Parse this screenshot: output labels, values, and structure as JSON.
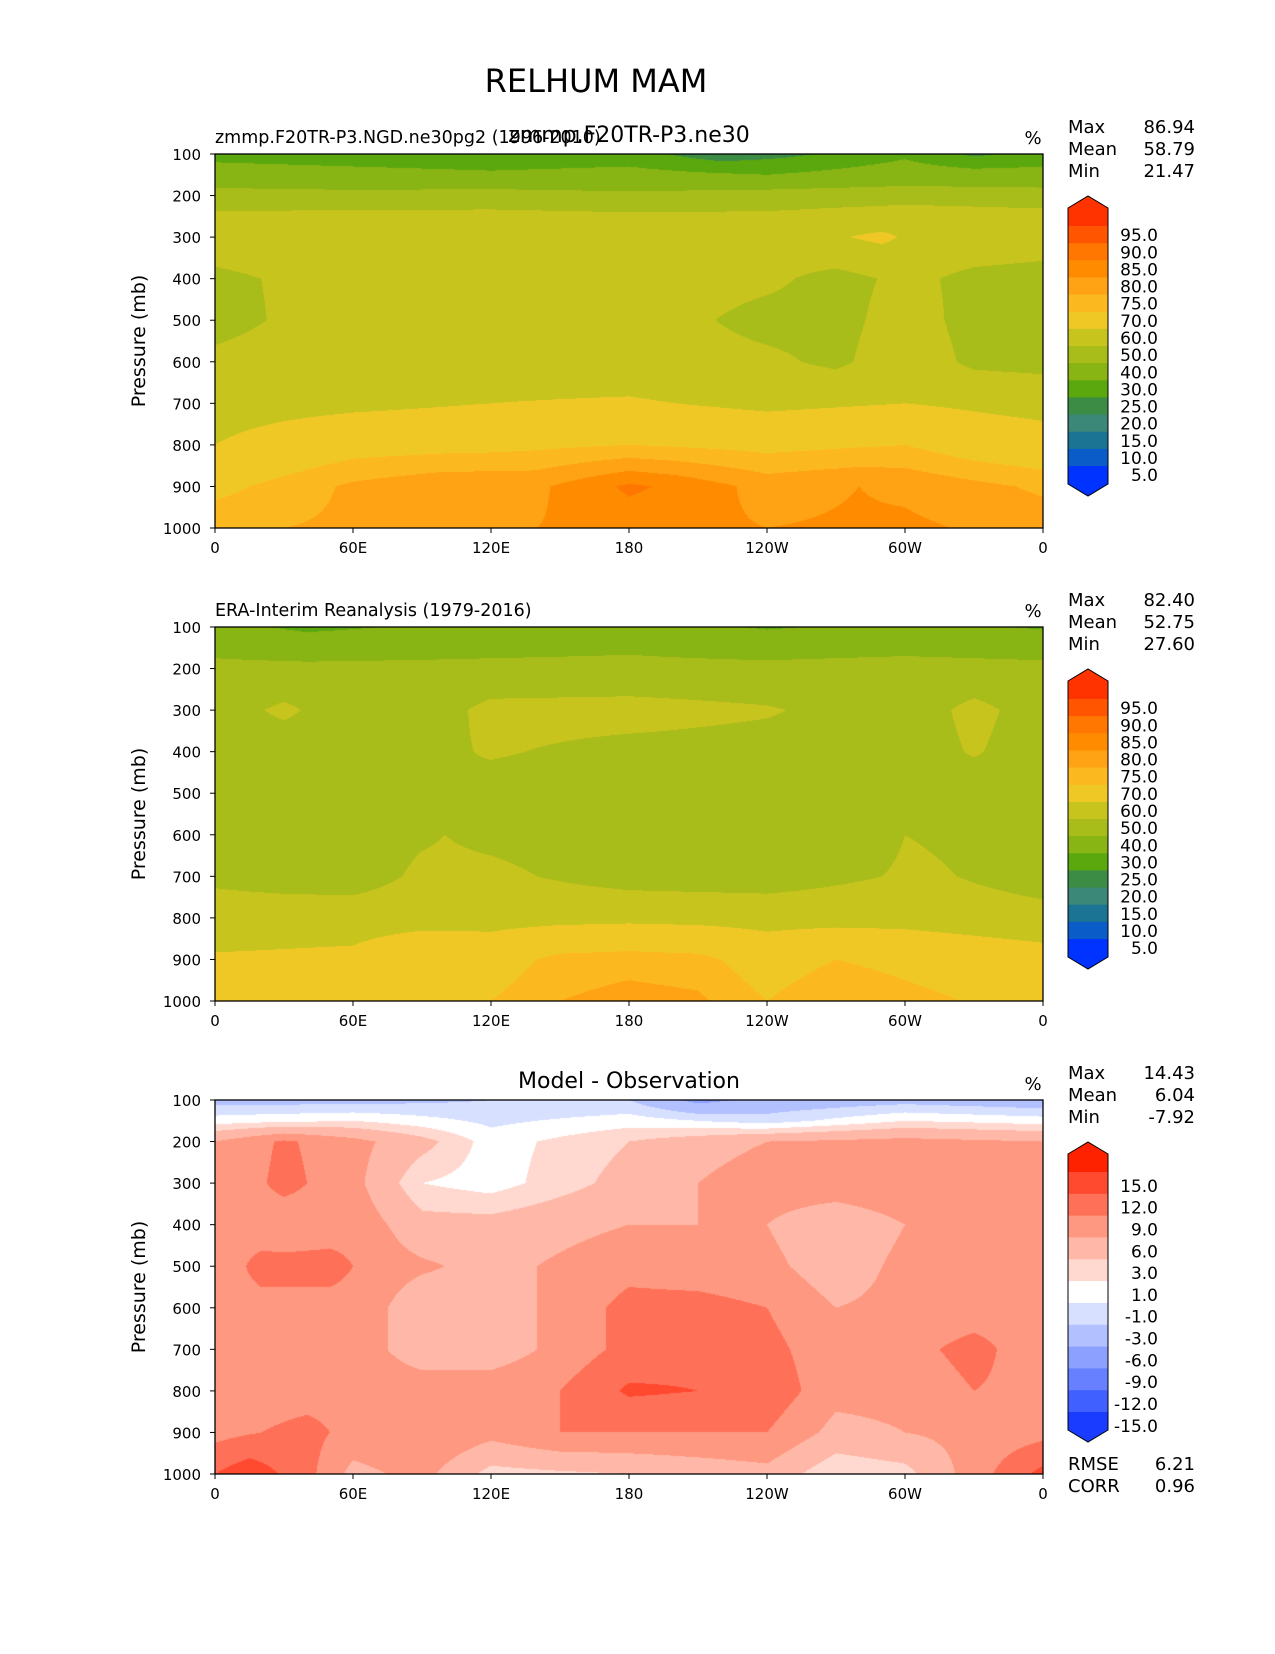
{
  "figure": {
    "title": "RELHUM MAM"
  },
  "chart_data": [
    {
      "type": "heatmap",
      "panel": "model",
      "left_title": "zmmp.F20TR-P3.NGD.ne30pg2 (1996-2010)",
      "center_title": "zmmp.F20TR-P3.ne30",
      "units": "%",
      "ylabel": "Pressure (mb)",
      "x_ticks": [
        "0",
        "60E",
        "120E",
        "180",
        "120W",
        "60W",
        "0"
      ],
      "y_ticks": [
        "100",
        "200",
        "300",
        "400",
        "500",
        "600",
        "700",
        "800",
        "900",
        "1000"
      ],
      "xlim": [
        0,
        360
      ],
      "ylim": [
        100,
        1000
      ],
      "stats": {
        "labels": [
          "Max",
          "Mean",
          "Min"
        ],
        "values": [
          "86.94",
          "58.79",
          "21.47"
        ]
      },
      "colorbar": {
        "levels": [
          "95.0",
          "90.0",
          "85.0",
          "80.0",
          "75.0",
          "70.0",
          "60.0",
          "50.0",
          "40.0",
          "30.0",
          "25.0",
          "20.0",
          "15.0",
          "10.0",
          "5.0"
        ],
        "colors": [
          "#ff3300",
          "#ff5500",
          "#ff7700",
          "#ff8c00",
          "#ffa214",
          "#fcb81f",
          "#f0c826",
          "#c8c41e",
          "#a8bc1a",
          "#88b414",
          "#5aa80e",
          "#3c8c46",
          "#3c8878",
          "#1c7494",
          "#0a5cc8",
          "#0033ff"
        ]
      },
      "bands": [
        {
          "p": 100,
          "lon": [
            0,
            60,
            120,
            180,
            220,
            250,
            300,
            330,
            360
          ],
          "v": [
            28,
            27,
            26,
            27,
            22,
            24,
            29,
            24,
            27
          ]
        },
        {
          "p": 150,
          "lon": [
            0,
            60,
            120,
            180,
            240,
            300,
            360
          ],
          "v": [
            33,
            32,
            31,
            32,
            30,
            33,
            32
          ]
        },
        {
          "p": 200,
          "lon": [
            0,
            60,
            120,
            180,
            240,
            300,
            360
          ],
          "v": [
            44,
            43,
            44,
            42,
            44,
            46,
            45
          ]
        },
        {
          "p": 250,
          "lon": [
            0,
            60,
            120,
            180,
            240,
            300,
            360
          ],
          "v": [
            52,
            53,
            53,
            52,
            52,
            55,
            53
          ]
        },
        {
          "p": 300,
          "lon": [
            0,
            60,
            120,
            180,
            240,
            290,
            310,
            360
          ],
          "v": [
            55,
            56,
            56,
            55,
            55,
            62,
            56,
            54
          ]
        },
        {
          "p": 400,
          "lon": [
            0,
            60,
            120,
            180,
            240,
            270,
            300,
            330,
            360
          ],
          "v": [
            48,
            54,
            55,
            55,
            52,
            47,
            52,
            48,
            47
          ]
        },
        {
          "p": 500,
          "lon": [
            0,
            60,
            120,
            180,
            240,
            270,
            300,
            330,
            360
          ],
          "v": [
            47,
            55,
            56,
            55,
            47,
            47,
            54,
            47,
            46
          ]
        },
        {
          "p": 600,
          "lon": [
            0,
            60,
            120,
            180,
            240,
            270,
            300,
            330,
            360
          ],
          "v": [
            52,
            56,
            56,
            55,
            52,
            48,
            56,
            48,
            47
          ]
        },
        {
          "p": 700,
          "lon": [
            0,
            60,
            120,
            180,
            240,
            300,
            360
          ],
          "v": [
            56,
            58,
            60,
            61,
            58,
            60,
            57
          ]
        },
        {
          "p": 800,
          "lon": [
            0,
            30,
            60,
            120,
            180,
            240,
            300,
            330,
            360
          ],
          "v": [
            60,
            64,
            67,
            68,
            70,
            68,
            70,
            66,
            64
          ]
        },
        {
          "p": 900,
          "lon": [
            0,
            30,
            60,
            100,
            140,
            180,
            200,
            240,
            280,
            300,
            360
          ],
          "v": [
            68,
            72,
            76,
            79,
            79,
            86,
            84,
            78,
            80,
            79,
            74
          ]
        },
        {
          "p": 1000,
          "lon": [
            0,
            60,
            100,
            140,
            180,
            240,
            300,
            360
          ],
          "v": [
            74,
            76,
            79,
            80,
            82,
            80,
            81,
            78
          ]
        }
      ]
    },
    {
      "type": "heatmap",
      "panel": "observation",
      "left_title": "ERA-Interim Reanalysis (1979-2016)",
      "center_title": "",
      "units": "%",
      "ylabel": "Pressure (mb)",
      "x_ticks": [
        "0",
        "60E",
        "120E",
        "180",
        "120W",
        "60W",
        "0"
      ],
      "y_ticks": [
        "100",
        "200",
        "300",
        "400",
        "500",
        "600",
        "700",
        "800",
        "900",
        "1000"
      ],
      "xlim": [
        0,
        360
      ],
      "ylim": [
        100,
        1000
      ],
      "stats": {
        "labels": [
          "Max",
          "Mean",
          "Min"
        ],
        "values": [
          "82.40",
          "52.75",
          "27.60"
        ]
      },
      "colorbar": {
        "levels": [
          "95.0",
          "90.0",
          "85.0",
          "80.0",
          "75.0",
          "70.0",
          "60.0",
          "50.0",
          "40.0",
          "30.0",
          "25.0",
          "20.0",
          "15.0",
          "10.0",
          "5.0"
        ],
        "colors": [
          "#ff3300",
          "#ff5500",
          "#ff7700",
          "#ff8c00",
          "#ffa214",
          "#fcb81f",
          "#f0c826",
          "#c8c41e",
          "#a8bc1a",
          "#88b414",
          "#5aa80e",
          "#3c8c46",
          "#3c8878",
          "#1c7494",
          "#0a5cc8",
          "#0033ff"
        ]
      },
      "bands": [
        {
          "p": 100,
          "lon": [
            0,
            40,
            120,
            180,
            240,
            300,
            360
          ],
          "v": [
            33,
            28,
            33,
            35,
            29,
            33,
            29
          ]
        },
        {
          "p": 150,
          "lon": [
            0,
            40,
            120,
            180,
            240,
            300,
            360
          ],
          "v": [
            38,
            36,
            38,
            39,
            37,
            38,
            37
          ]
        },
        {
          "p": 200,
          "lon": [
            0,
            60,
            120,
            180,
            240,
            300,
            360
          ],
          "v": [
            42,
            42,
            42,
            42,
            42,
            43,
            42
          ]
        },
        {
          "p": 300,
          "lon": [
            0,
            30,
            60,
            90,
            120,
            180,
            240,
            300,
            330,
            360
          ],
          "v": [
            45,
            52,
            44,
            44,
            53,
            54,
            51,
            44,
            53,
            45
          ]
        },
        {
          "p": 400,
          "lon": [
            0,
            60,
            90,
            120,
            180,
            240,
            300,
            330,
            360
          ],
          "v": [
            44,
            44,
            47,
            51,
            47,
            46,
            44,
            51,
            44
          ]
        },
        {
          "p": 500,
          "lon": [
            0,
            60,
            100,
            120,
            180,
            240,
            300,
            360
          ],
          "v": [
            44,
            43,
            50,
            46,
            45,
            44,
            44,
            44
          ]
        },
        {
          "p": 600,
          "lon": [
            0,
            60,
            100,
            120,
            180,
            240,
            290,
            300,
            360
          ],
          "v": [
            44,
            45,
            50,
            48,
            45,
            44,
            44,
            50,
            44
          ]
        },
        {
          "p": 700,
          "lon": [
            0,
            30,
            60,
            90,
            120,
            180,
            240,
            290,
            300,
            360
          ],
          "v": [
            48,
            46,
            45,
            52,
            52,
            46,
            45,
            50,
            53,
            45
          ]
        },
        {
          "p": 800,
          "lon": [
            0,
            60,
            120,
            180,
            240,
            300,
            360
          ],
          "v": [
            55,
            56,
            57,
            58,
            57,
            57,
            54
          ]
        },
        {
          "p": 900,
          "lon": [
            0,
            60,
            90,
            120,
            150,
            180,
            210,
            240,
            270,
            300,
            360
          ],
          "v": [
            61,
            62,
            68,
            66,
            72,
            73,
            72,
            66,
            70,
            68,
            64
          ]
        },
        {
          "p": 1000,
          "lon": [
            0,
            60,
            90,
            120,
            150,
            180,
            210,
            240,
            270,
            300,
            360
          ],
          "v": [
            67,
            68,
            70,
            70,
            75,
            77,
            76,
            70,
            75,
            72,
            67
          ]
        }
      ]
    },
    {
      "type": "heatmap",
      "panel": "difference",
      "left_title": "",
      "center_title": "Model - Observation",
      "units": "%",
      "ylabel": "Pressure (mb)",
      "x_ticks": [
        "0",
        "60E",
        "120E",
        "180",
        "120W",
        "60W",
        "0"
      ],
      "y_ticks": [
        "100",
        "200",
        "300",
        "400",
        "500",
        "600",
        "700",
        "800",
        "900",
        "1000"
      ],
      "xlim": [
        0,
        360
      ],
      "ylim": [
        100,
        1000
      ],
      "stats": {
        "labels": [
          "Max",
          "Mean",
          "Min"
        ],
        "values": [
          "14.43",
          "6.04",
          "-7.92"
        ]
      },
      "extra_stats": {
        "labels": [
          "RMSE",
          "CORR"
        ],
        "values": [
          "6.21",
          "0.96"
        ]
      },
      "colorbar": {
        "levels": [
          "15.0",
          "12.0",
          "9.0",
          "6.0",
          "3.0",
          "1.0",
          "-1.0",
          "-3.0",
          "-6.0",
          "-9.0",
          "-12.0",
          "-15.0"
        ],
        "colors": [
          "#ff2200",
          "#ff4a30",
          "#ff7058",
          "#ff9880",
          "#ffb8a8",
          "#ffd8d0",
          "#ffffff",
          "#d8e0ff",
          "#b2c0ff",
          "#8ca0ff",
          "#6680ff",
          "#4060ff",
          "#1a3cff"
        ]
      },
      "bands": [
        {
          "p": 100,
          "lon": [
            0,
            60,
            120,
            180,
            210,
            240,
            300,
            360
          ],
          "v": [
            -4,
            -4,
            -3,
            -3,
            -7,
            -5,
            -4,
            -5
          ]
        },
        {
          "p": 150,
          "lon": [
            0,
            60,
            120,
            180,
            240,
            300,
            360
          ],
          "v": [
            0,
            1,
            -1.5,
            0,
            -2,
            1,
            0
          ]
        },
        {
          "p": 200,
          "lon": [
            0,
            30,
            60,
            90,
            120,
            180,
            240,
            300,
            360
          ],
          "v": [
            6,
            9.5,
            7,
            4,
            0,
            3,
            6,
            7,
            6
          ]
        },
        {
          "p": 300,
          "lon": [
            0,
            30,
            60,
            90,
            120,
            180,
            240,
            300,
            360
          ],
          "v": [
            6,
            10,
            7,
            1,
            0,
            4,
            8,
            9,
            6
          ]
        },
        {
          "p": 400,
          "lon": [
            0,
            30,
            60,
            90,
            120,
            180,
            240,
            270,
            300,
            360
          ],
          "v": [
            8,
            7,
            8,
            4,
            4,
            6,
            6,
            3,
            6,
            6
          ]
        },
        {
          "p": 500,
          "lon": [
            0,
            20,
            50,
            80,
            120,
            180,
            240,
            270,
            300,
            360
          ],
          "v": [
            7,
            10,
            10,
            7,
            5,
            8,
            7,
            4,
            7,
            7
          ]
        },
        {
          "p": 600,
          "lon": [
            0,
            60,
            90,
            120,
            150,
            180,
            210,
            240,
            270,
            300,
            360
          ],
          "v": [
            8,
            8,
            4,
            4,
            7,
            10,
            10,
            9,
            6,
            7,
            8
          ]
        },
        {
          "p": 700,
          "lon": [
            0,
            60,
            90,
            120,
            150,
            180,
            210,
            240,
            270,
            300,
            330,
            360
          ],
          "v": [
            7,
            8,
            4,
            4,
            7,
            10,
            11,
            10,
            7,
            8,
            10,
            7
          ]
        },
        {
          "p": 800,
          "lon": [
            0,
            60,
            120,
            150,
            180,
            210,
            240,
            270,
            300,
            330,
            360
          ],
          "v": [
            7,
            8,
            8,
            9,
            12.5,
            12,
            11,
            7,
            7,
            9,
            8
          ]
        },
        {
          "p": 900,
          "lon": [
            0,
            40,
            60,
            90,
            120,
            150,
            180,
            240,
            270,
            300,
            360
          ],
          "v": [
            8,
            10,
            8,
            9,
            7,
            9,
            9,
            9,
            5,
            6,
            8
          ]
        },
        {
          "p": 1000,
          "lon": [
            0,
            15,
            40,
            60,
            90,
            120,
            180,
            240,
            270,
            300,
            360
          ],
          "v": [
            12,
            14,
            10,
            5,
            7,
            2,
            3,
            5,
            1,
            2,
            13
          ]
        }
      ]
    }
  ]
}
